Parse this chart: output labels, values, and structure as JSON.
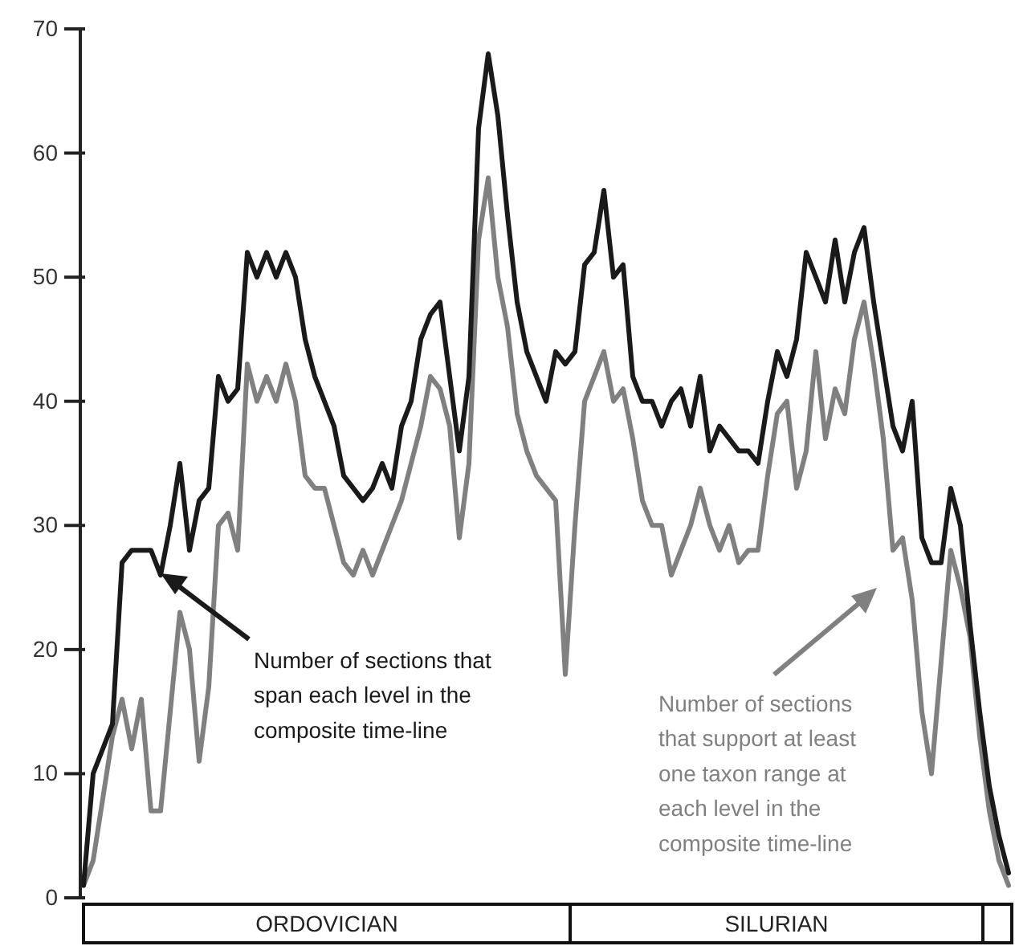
{
  "chart_data": {
    "type": "line",
    "categories": [
      null,
      null,
      null,
      null,
      null,
      null,
      null,
      null,
      null,
      null,
      null,
      null,
      null,
      null,
      null,
      null,
      null,
      null,
      null,
      null,
      null,
      null,
      null,
      null,
      null,
      null,
      null,
      null,
      null,
      null,
      null,
      null,
      null,
      null,
      null,
      null,
      null,
      null,
      null,
      null,
      null,
      null,
      null,
      null,
      null,
      null,
      null,
      null,
      null,
      null,
      null,
      null,
      null,
      null,
      null,
      null,
      null,
      null,
      null,
      null,
      null,
      null,
      null,
      null,
      null,
      null,
      null,
      null,
      null,
      null,
      null,
      null,
      null,
      null,
      null,
      null,
      null,
      null,
      null,
      null,
      null,
      null,
      null,
      null,
      null,
      null,
      null,
      null,
      null,
      null,
      null,
      null,
      null,
      null,
      null,
      null,
      null
    ],
    "series": [
      {
        "color": "#1a1a1a",
        "values": [
          1,
          10,
          12,
          14,
          27,
          28,
          28,
          28,
          26,
          30,
          35,
          28,
          32,
          33,
          42,
          40,
          41,
          52,
          50,
          52,
          50,
          52,
          50,
          45,
          42,
          40,
          38,
          34,
          33,
          32,
          33,
          35,
          33,
          38,
          40,
          45,
          47,
          48,
          42,
          36,
          42,
          62,
          68,
          63,
          55,
          48,
          44,
          42,
          40,
          44,
          43,
          44,
          51,
          52,
          57,
          50,
          51,
          42,
          40,
          40,
          38,
          40,
          41,
          38,
          42,
          36,
          38,
          37,
          36,
          36,
          35,
          40,
          44,
          42,
          45,
          52,
          50,
          48,
          53,
          48,
          52,
          54,
          48,
          43,
          38,
          36,
          40,
          29,
          27,
          27,
          33,
          30,
          22,
          15,
          9,
          5,
          2
        ]
      },
      {
        "color": "#808080",
        "values": [
          1,
          3,
          8,
          13,
          16,
          12,
          16,
          7,
          7,
          15,
          23,
          20,
          11,
          17,
          30,
          31,
          28,
          43,
          40,
          42,
          40,
          43,
          40,
          34,
          33,
          33,
          30,
          27,
          26,
          28,
          26,
          28,
          30,
          32,
          35,
          38,
          42,
          41,
          38,
          29,
          35,
          53,
          58,
          50,
          46,
          39,
          36,
          34,
          33,
          32,
          18,
          30,
          40,
          42,
          44,
          40,
          41,
          37,
          32,
          30,
          30,
          26,
          28,
          30,
          33,
          30,
          28,
          30,
          27,
          28,
          28,
          34,
          39,
          40,
          33,
          36,
          44,
          37,
          41,
          39,
          45,
          48,
          43,
          37,
          28,
          29,
          24,
          15,
          10,
          19,
          28,
          25,
          21,
          13,
          7,
          3,
          1
        ]
      }
    ],
    "ylim": [
      0,
      70
    ],
    "yticks": [
      0,
      10,
      20,
      30,
      40,
      50,
      60,
      70
    ],
    "grid": false,
    "tick_labels": "y",
    "line_style": "solid",
    "marker": "none",
    "annotations": [
      "Number of sections that span each level in the composite time-line",
      "Number of sections that support at least one taxon range at each level in the composite time-line",
      "ORDOVICIAN",
      "SILURIAN"
    ]
  }
}
